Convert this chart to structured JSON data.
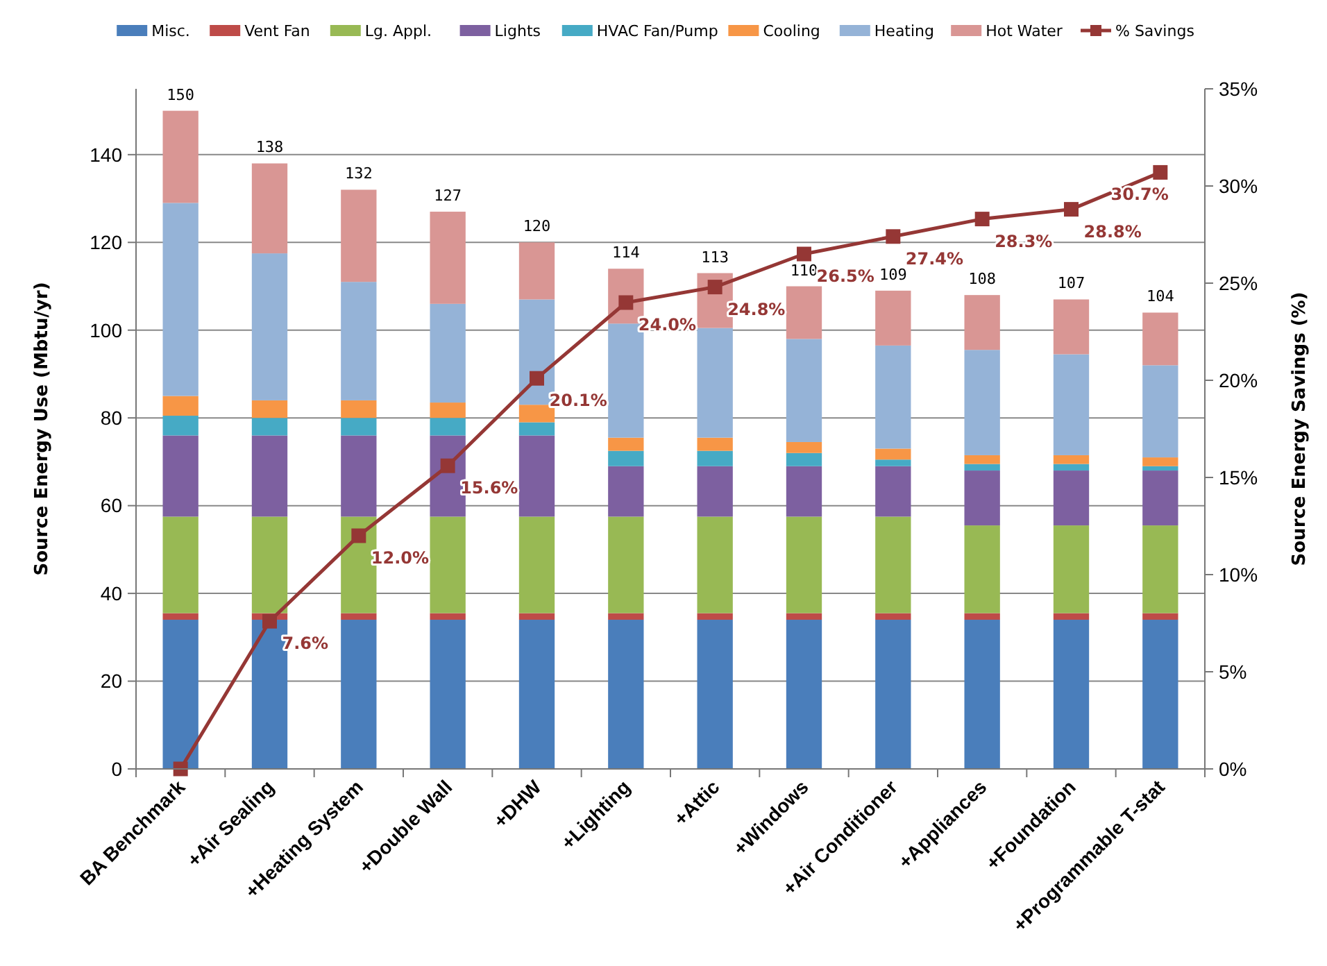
{
  "chart_data": {
    "type": "bar",
    "stacked": true,
    "categories": [
      "BA Benchmark",
      "+Air Sealing",
      "+Heating System",
      "+Double Wall",
      "+DHW",
      "+Lighting",
      "+Attic",
      "+Windows",
      "+Air Conditioner",
      "+Appliances",
      "+Foundation",
      "+Programmable T-stat"
    ],
    "ylabel": "Source Energy Use (Mbtu/yr)",
    "y2label": "Source Energy Savings (%)",
    "ylim": [
      0,
      155
    ],
    "yticks": [
      0,
      20,
      40,
      60,
      80,
      100,
      120,
      140
    ],
    "y2lim": [
      0,
      35
    ],
    "y2ticks": [
      {
        "value": 0,
        "label": "0%"
      },
      {
        "value": 5,
        "label": "5%"
      },
      {
        "value": 10,
        "label": "10%"
      },
      {
        "value": 15,
        "label": "15%"
      },
      {
        "value": 20,
        "label": "20%"
      },
      {
        "value": 25,
        "label": "25%"
      },
      {
        "value": 30,
        "label": "30%"
      },
      {
        "value": 35,
        "label": "35%"
      }
    ],
    "grid": "y",
    "legend": "top",
    "totals": [
      "150",
      "138",
      "132",
      "127",
      "120",
      "114",
      "113",
      "110",
      "109",
      "108",
      "107",
      "104"
    ],
    "series": [
      {
        "name": "Misc.",
        "color": "#4a7ebb",
        "values": [
          34,
          34,
          34,
          34,
          34,
          34,
          34,
          34,
          34,
          34,
          34,
          34
        ]
      },
      {
        "name": "Vent Fan",
        "color": "#be4b48",
        "values": [
          1.5,
          1.5,
          1.5,
          1.5,
          1.5,
          1.5,
          1.5,
          1.5,
          1.5,
          1.5,
          1.5,
          1.5
        ]
      },
      {
        "name": "Lg. Appl.",
        "color": "#98b954",
        "values": [
          22,
          22,
          22,
          22,
          22,
          22,
          22,
          22,
          22,
          20,
          20,
          20
        ]
      },
      {
        "name": "Lights",
        "color": "#7d60a0",
        "values": [
          18.5,
          18.5,
          18.5,
          18.5,
          18.5,
          11.5,
          11.5,
          11.5,
          11.5,
          12.5,
          12.5,
          12.5
        ]
      },
      {
        "name": "HVAC Fan/Pump",
        "color": "#46aac5",
        "values": [
          4.5,
          4,
          4,
          4,
          3,
          3.5,
          3.5,
          3,
          1.5,
          1.5,
          1.5,
          1
        ]
      },
      {
        "name": "Cooling",
        "color": "#f79646",
        "values": [
          4.5,
          4,
          4,
          3.5,
          4,
          3,
          3,
          2.5,
          2.5,
          2,
          2,
          2
        ]
      },
      {
        "name": "Heating",
        "color": "#95b3d7",
        "values": [
          44,
          33.5,
          27,
          22.5,
          24,
          26,
          25,
          23.5,
          23.5,
          24,
          23,
          21
        ]
      },
      {
        "name": "Hot Water",
        "color": "#d99694",
        "values": [
          21,
          20.5,
          21,
          21,
          13,
          12.5,
          12.5,
          12,
          12.5,
          12.5,
          12.5,
          12
        ]
      },
      {
        "name": "% Savings",
        "type": "line",
        "axis": "y2",
        "marker": "square",
        "color": "#953735",
        "values": [
          0,
          7.6,
          12.0,
          15.6,
          20.1,
          24.0,
          24.8,
          26.5,
          27.4,
          28.3,
          28.8,
          30.7
        ],
        "value_labels": [
          null,
          "7.6%",
          "12.0%",
          "15.6%",
          "20.1%",
          "24.0%",
          "24.8%",
          "26.5%",
          "27.4%",
          "28.3%",
          "28.8%",
          "30.7%"
        ]
      }
    ]
  }
}
